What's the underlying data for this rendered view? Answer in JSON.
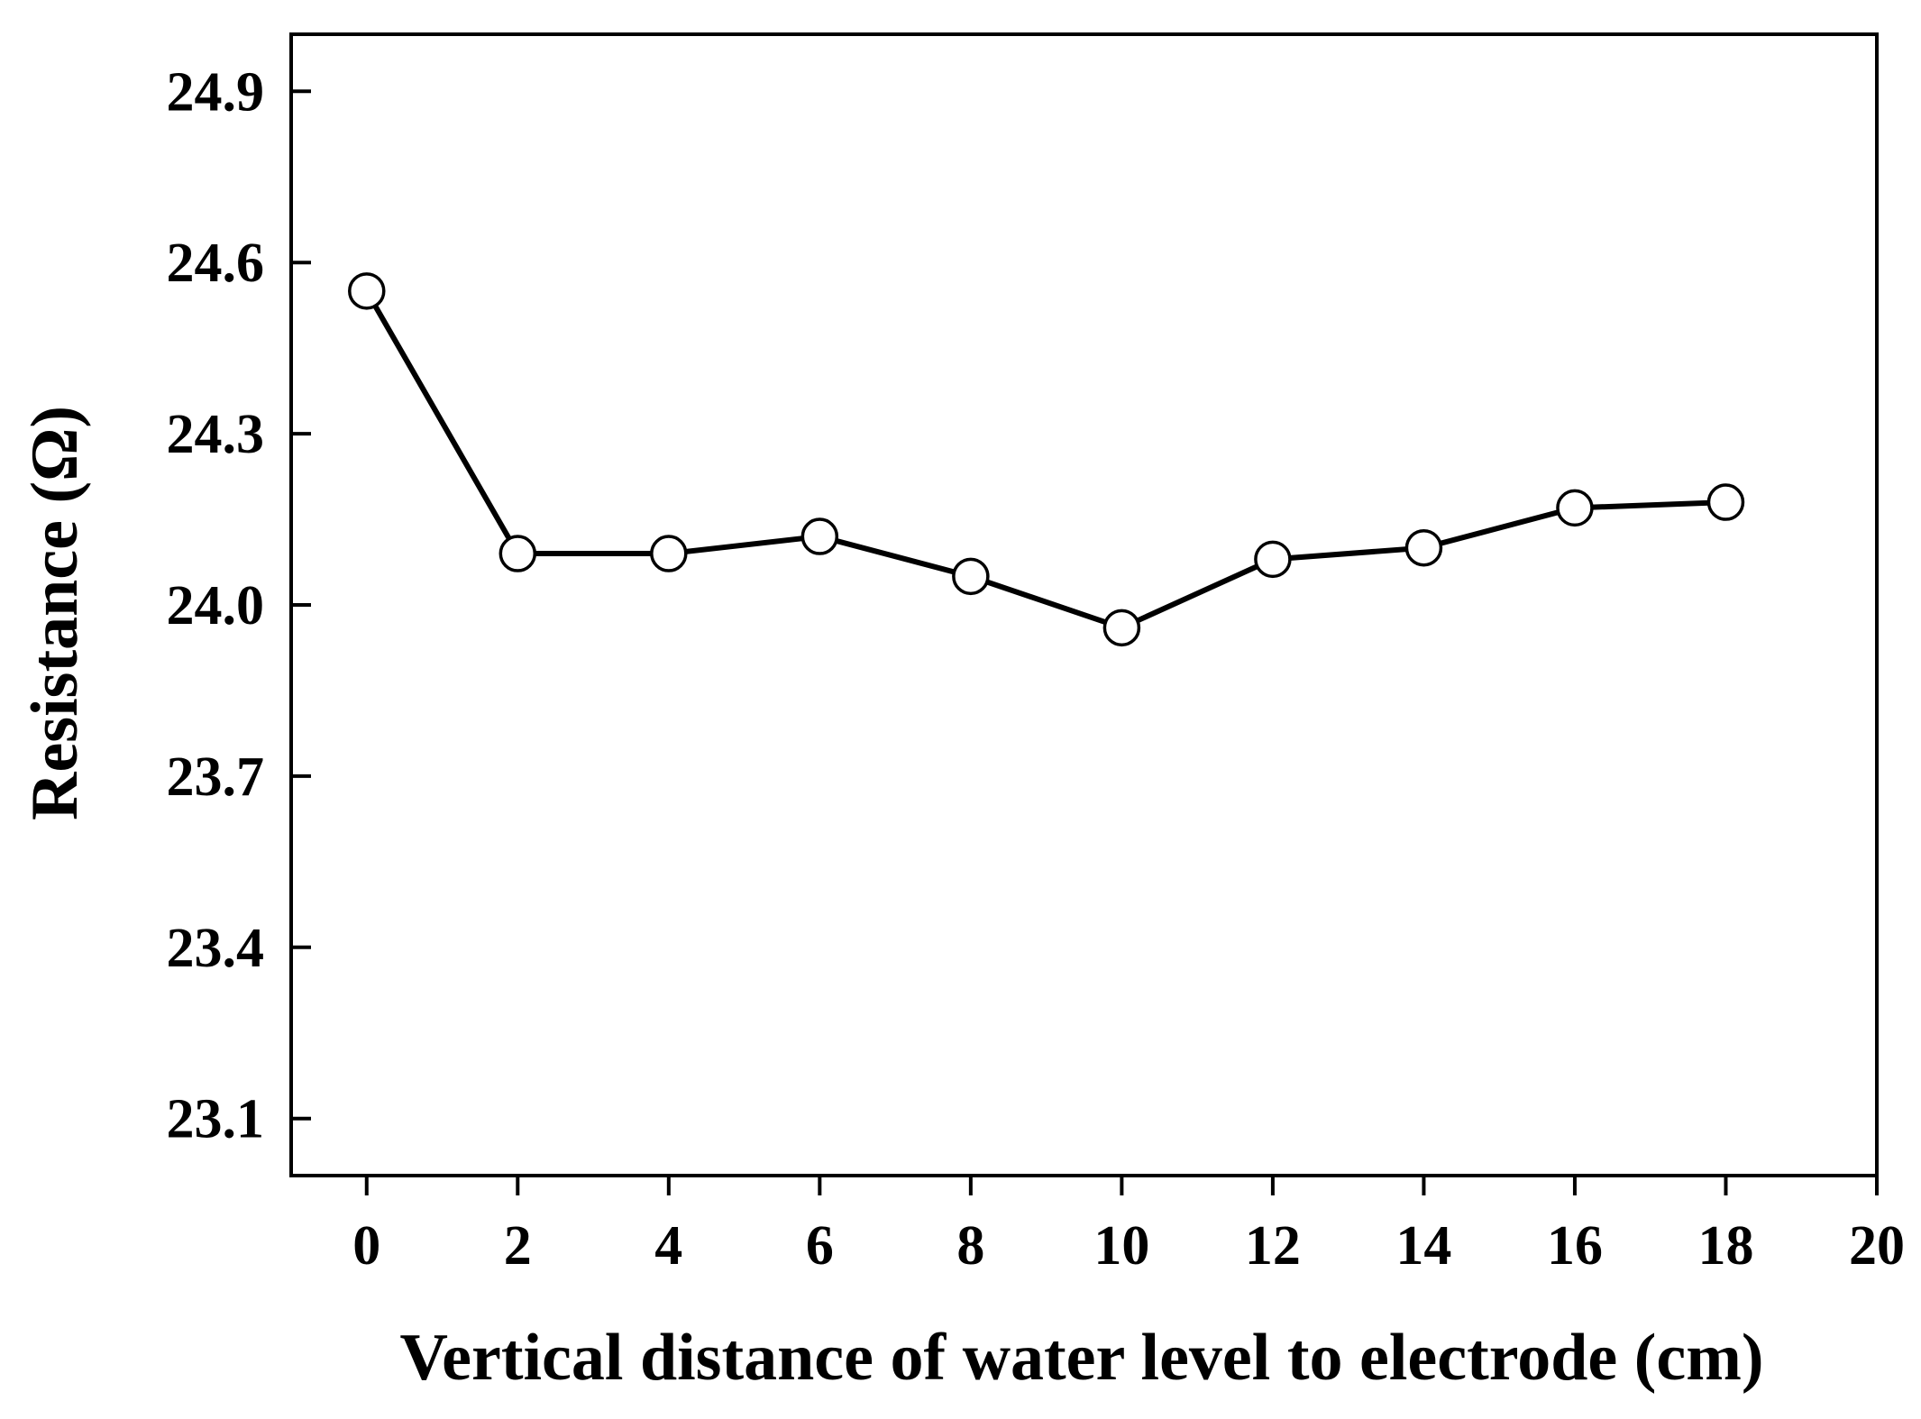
{
  "chart_data": {
    "type": "line",
    "x_label": "Vertical distance of water level to electrode (cm)",
    "y_label": "Resistance (Ω)",
    "x": [
      0,
      2,
      4,
      6,
      8,
      10,
      12,
      14,
      16,
      18
    ],
    "series": [
      {
        "color": "#000000",
        "values": [
          24.55,
          24.09,
          24.09,
          24.12,
          24.05,
          23.96,
          24.08,
          24.1,
          24.17,
          24.18
        ]
      }
    ],
    "xlim": [
      -1,
      20
    ],
    "xticks": [
      0,
      2,
      4,
      6,
      8,
      10,
      12,
      14,
      16,
      18,
      20
    ],
    "ylim": [
      23.0,
      25.0
    ],
    "yticks": [
      23.1,
      23.4,
      23.7,
      {
        "value": 24,
        "label": "24.0"
      },
      24.3,
      24.6,
      24.9
    ],
    "grid": false
  }
}
